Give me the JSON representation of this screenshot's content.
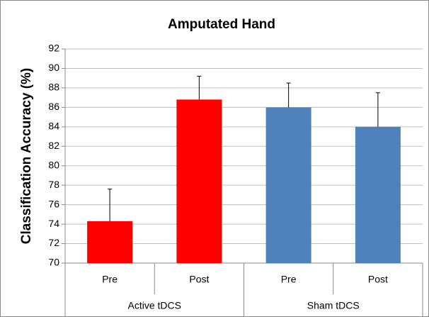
{
  "chart_data": {
    "type": "bar",
    "title": "Amputated Hand",
    "ylabel": "Classification Accuracy (%)",
    "categories": [
      "Pre",
      "Post",
      "Pre",
      "Post"
    ],
    "category_groups": [
      {
        "label": "Active tDCS",
        "span": 2
      },
      {
        "label": "Sham tDCS",
        "span": 2
      }
    ],
    "values": [
      74.3,
      86.8,
      86.0,
      84.0
    ],
    "errors": [
      3.3,
      2.4,
      2.5,
      3.5
    ],
    "colors": [
      "#ff0000",
      "#ff0000",
      "#4f81bd",
      "#4f81bd"
    ],
    "ylim": [
      70,
      92
    ],
    "yticks": [
      70,
      72,
      74,
      76,
      78,
      80,
      82,
      84,
      86,
      88,
      90,
      92
    ],
    "grid": true
  }
}
